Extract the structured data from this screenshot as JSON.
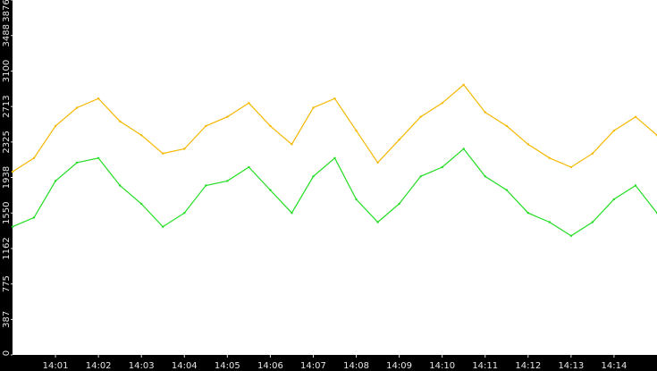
{
  "colors": {
    "background": "#000000",
    "plot_background": "#ffffff",
    "tick_text": "#e6e6e6",
    "series_orange": "#f5b800",
    "series_green": "#22dd22"
  },
  "chart_data": {
    "type": "line",
    "title": "",
    "xlabel": "",
    "ylabel": "",
    "ylim": [
      0,
      3876
    ],
    "y_ticks": [
      0,
      387,
      775,
      1162,
      1550,
      1938,
      2325,
      2713,
      3100,
      3488,
      3876
    ],
    "y_tick_labels": [
      "0",
      "387",
      "775",
      "1162",
      "1550",
      "1938",
      "2325",
      "2713",
      "3100",
      "3488",
      "3876"
    ],
    "xlim": [
      "14:00:00",
      "14:15:00"
    ],
    "x_tick_labels": [
      "14:01",
      "14:02",
      "14:03",
      "14:04",
      "14:05",
      "14:06",
      "14:07",
      "14:08",
      "14:09",
      "14:10",
      "14:11",
      "14:12",
      "14:13",
      "14:14"
    ],
    "grid": false,
    "legend": "none",
    "series": [
      {
        "color": "#f5b800",
        "x": [
          "14:00:00",
          "14:00:30",
          "14:01:00",
          "14:01:30",
          "14:02:00",
          "14:02:30",
          "14:03:00",
          "14:03:30",
          "14:04:00",
          "14:04:30",
          "14:05:00",
          "14:05:30",
          "14:06:00",
          "14:06:30",
          "14:07:00",
          "14:07:30",
          "14:08:00",
          "14:08:30",
          "14:09:00",
          "14:09:30",
          "14:10:00",
          "14:10:30",
          "14:11:00",
          "14:11:30",
          "14:12:00",
          "14:12:30",
          "14:13:00",
          "14:13:30",
          "14:14:00",
          "14:14:30",
          "14:15:00"
        ],
        "values": [
          2000,
          2150,
          2500,
          2700,
          2800,
          2550,
          2400,
          2200,
          2250,
          2500,
          2600,
          2750,
          2500,
          2300,
          2700,
          2800,
          2450,
          2100,
          2350,
          2600,
          2750,
          2950,
          2650,
          2500,
          2300,
          2150,
          2050,
          2200,
          2450,
          2600,
          2400
        ]
      },
      {
        "color": "#22dd22",
        "x": [
          "14:00:00",
          "14:00:30",
          "14:01:00",
          "14:01:30",
          "14:02:00",
          "14:02:30",
          "14:03:00",
          "14:03:30",
          "14:04:00",
          "14:04:30",
          "14:05:00",
          "14:05:30",
          "14:06:00",
          "14:06:30",
          "14:07:00",
          "14:07:30",
          "14:08:00",
          "14:08:30",
          "14:09:00",
          "14:09:30",
          "14:10:00",
          "14:10:30",
          "14:11:00",
          "14:11:30",
          "14:12:00",
          "14:12:30",
          "14:13:00",
          "14:13:30",
          "14:14:00",
          "14:14:30",
          "14:15:00"
        ],
        "values": [
          1400,
          1500,
          1900,
          2100,
          2150,
          1850,
          1650,
          1400,
          1550,
          1850,
          1900,
          2050,
          1800,
          1550,
          1950,
          2150,
          1700,
          1450,
          1650,
          1950,
          2050,
          2250,
          1950,
          1800,
          1550,
          1450,
          1300,
          1450,
          1700,
          1850,
          1550
        ]
      }
    ]
  }
}
